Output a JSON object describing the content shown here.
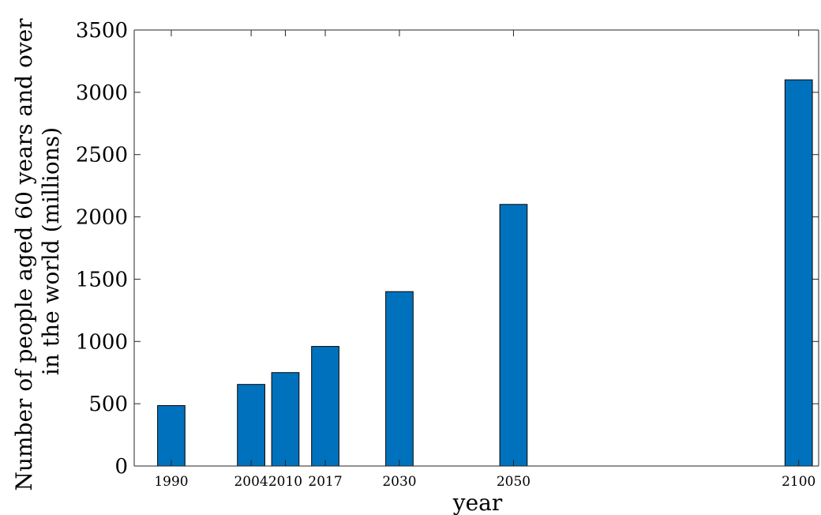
{
  "chart_data": {
    "type": "bar",
    "x": [
      1990,
      2004,
      2010,
      2017,
      2030,
      2050,
      2100
    ],
    "values": [
      485,
      655,
      750,
      960,
      1400,
      2100,
      3100
    ],
    "xlabel": "year",
    "ylabel": [
      "Number of people aged 60 years and over",
      "in the world (millions)"
    ],
    "ylim": [
      0,
      3500
    ],
    "xlim": [
      1983.5,
      2103.5
    ],
    "yticks": [
      0,
      500,
      1000,
      1500,
      2000,
      2500,
      3000,
      3500
    ],
    "xtick_labels": [
      "1990",
      "2004",
      "2010",
      "2017",
      "2030",
      "2050",
      "2100"
    ],
    "bar_width_years": 4.8,
    "colors": {
      "bar": "#0072BD",
      "bar_edge": "#000000",
      "axis": "#262626",
      "text": "#000000"
    },
    "grid": false,
    "legend": "none"
  }
}
